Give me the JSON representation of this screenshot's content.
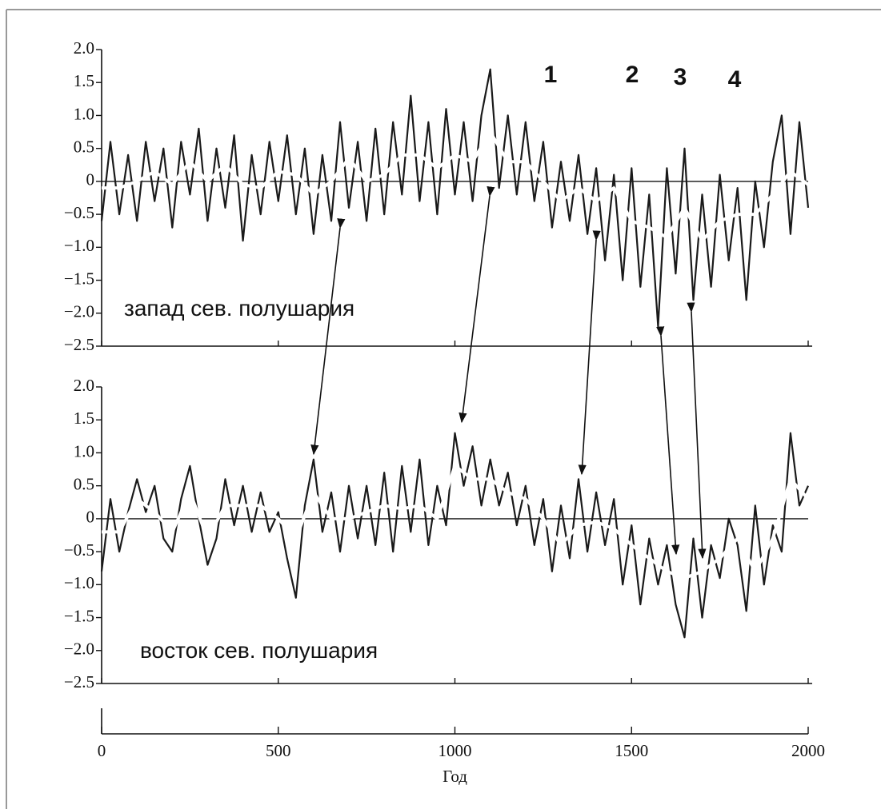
{
  "chart_data": [
    {
      "type": "line",
      "label": "запад сев. полушария",
      "annotations": [
        "1",
        "2",
        "3",
        "4"
      ],
      "xlim": [
        0,
        2000
      ],
      "ylim": [
        -2.5,
        2
      ],
      "yticks": [
        {
          "value": 2,
          "label": "2.0"
        },
        {
          "value": 1.5,
          "label": "1.5"
        },
        {
          "value": 1,
          "label": "1.0"
        },
        {
          "value": 0.5,
          "label": "0.5"
        },
        0,
        {
          "value": -0.5,
          "label": "−0.5"
        },
        {
          "value": -1,
          "label": "−1.0"
        },
        {
          "value": -1.5,
          "label": "−1.5"
        },
        {
          "value": -2,
          "label": "−2.0"
        },
        {
          "value": -2.5,
          "label": "−2.5"
        }
      ],
      "series": [
        {
          "color": "#1a1a1a",
          "x": [
            0,
            25,
            50,
            75,
            100,
            125,
            150,
            175,
            200,
            225,
            250,
            275,
            300,
            325,
            350,
            375,
            400,
            425,
            450,
            475,
            500,
            525,
            550,
            575,
            600,
            625,
            650,
            675,
            700,
            725,
            750,
            775,
            800,
            825,
            850,
            875,
            900,
            925,
            950,
            975,
            1000,
            1025,
            1050,
            1075,
            1100,
            1125,
            1150,
            1175,
            1200,
            1225,
            1250,
            1275,
            1300,
            1325,
            1350,
            1375,
            1400,
            1425,
            1450,
            1475,
            1500,
            1525,
            1550,
            1575,
            1600,
            1625,
            1650,
            1675,
            1700,
            1725,
            1750,
            1775,
            1800,
            1825,
            1850,
            1875,
            1900,
            1925,
            1950,
            1975,
            2000
          ],
          "values": [
            -0.6,
            0.6,
            -0.5,
            0.4,
            -0.6,
            0.6,
            -0.3,
            0.5,
            -0.7,
            0.6,
            -0.2,
            0.8,
            -0.6,
            0.5,
            -0.4,
            0.7,
            -0.9,
            0.4,
            -0.5,
            0.6,
            -0.3,
            0.7,
            -0.5,
            0.5,
            -0.8,
            0.4,
            -0.6,
            0.9,
            -0.4,
            0.6,
            -0.6,
            0.8,
            -0.5,
            0.9,
            -0.2,
            1.3,
            -0.3,
            0.9,
            -0.5,
            1.1,
            -0.2,
            0.9,
            -0.3,
            1.0,
            1.7,
            -0.1,
            1.0,
            -0.2,
            0.9,
            -0.3,
            0.6,
            -0.7,
            0.3,
            -0.6,
            0.4,
            -0.8,
            0.2,
            -1.2,
            0.1,
            -1.5,
            0.2,
            -1.6,
            -0.2,
            -2.2,
            0.2,
            -1.4,
            0.5,
            -1.8,
            -0.2,
            -1.6,
            0.1,
            -1.2,
            -0.1,
            -1.8,
            0.0,
            -1.0,
            0.3,
            1.0,
            -0.8,
            0.9,
            -0.4
          ]
        },
        {
          "color": "#ffffff",
          "x": [
            0,
            50,
            100,
            150,
            200,
            250,
            300,
            350,
            400,
            450,
            500,
            550,
            600,
            650,
            700,
            750,
            800,
            850,
            900,
            950,
            1000,
            1050,
            1100,
            1150,
            1200,
            1250,
            1300,
            1350,
            1400,
            1450,
            1500,
            1550,
            1600,
            1650,
            1700,
            1750,
            1800,
            1850,
            1900,
            1950,
            2000
          ],
          "values": [
            -0.1,
            -0.1,
            0.0,
            0.15,
            -0.05,
            0.3,
            0.0,
            0.25,
            -0.05,
            -0.1,
            0.15,
            0.1,
            -0.2,
            0.0,
            0.35,
            0.0,
            0.1,
            0.4,
            0.4,
            0.2,
            0.4,
            0.3,
            0.75,
            0.3,
            0.3,
            0.0,
            -0.3,
            -0.1,
            -0.3,
            -0.1,
            -0.6,
            -0.7,
            -0.85,
            -0.4,
            -0.9,
            -0.6,
            -0.5,
            -0.5,
            -0.2,
            0.15,
            -0.05
          ]
        }
      ]
    },
    {
      "type": "line",
      "label": "восток сев. полушария",
      "xlabel": "Год",
      "xlim": [
        0,
        2000
      ],
      "xticks": [
        0,
        500,
        1000,
        1500,
        2000
      ],
      "ylim": [
        -2.5,
        2
      ],
      "yticks": [
        {
          "value": 2,
          "label": "2.0"
        },
        {
          "value": 1.5,
          "label": "1.5"
        },
        {
          "value": 1,
          "label": "1.0"
        },
        {
          "value": 0.5,
          "label": "0.5"
        },
        0,
        {
          "value": -0.5,
          "label": "−0.5"
        },
        {
          "value": -1,
          "label": "−1.0"
        },
        {
          "value": -1.5,
          "label": "−1.5"
        },
        {
          "value": -2,
          "label": "−2.0"
        },
        {
          "value": -2.5,
          "label": "−2.5"
        }
      ],
      "series": [
        {
          "color": "#1a1a1a",
          "x": [
            0,
            25,
            50,
            75,
            100,
            125,
            150,
            175,
            200,
            225,
            250,
            275,
            300,
            325,
            350,
            375,
            400,
            425,
            450,
            475,
            500,
            525,
            550,
            575,
            600,
            625,
            650,
            675,
            700,
            725,
            750,
            775,
            800,
            825,
            850,
            875,
            900,
            925,
            950,
            975,
            1000,
            1025,
            1050,
            1075,
            1100,
            1125,
            1150,
            1175,
            1200,
            1225,
            1250,
            1275,
            1300,
            1325,
            1350,
            1375,
            1400,
            1425,
            1450,
            1475,
            1500,
            1525,
            1550,
            1575,
            1600,
            1625,
            1650,
            1675,
            1700,
            1725,
            1750,
            1775,
            1800,
            1825,
            1850,
            1875,
            1900,
            1925,
            1950,
            1975,
            2000
          ],
          "values": [
            -0.8,
            0.3,
            -0.5,
            0.1,
            0.6,
            0.1,
            0.5,
            -0.3,
            -0.5,
            0.3,
            0.8,
            0.0,
            -0.7,
            -0.3,
            0.6,
            -0.1,
            0.5,
            -0.2,
            0.4,
            -0.2,
            0.1,
            -0.6,
            -1.2,
            0.2,
            0.9,
            -0.2,
            0.4,
            -0.5,
            0.5,
            -0.3,
            0.5,
            -0.4,
            0.7,
            -0.5,
            0.8,
            -0.2,
            0.9,
            -0.4,
            0.5,
            -0.1,
            1.3,
            0.5,
            1.1,
            0.2,
            0.9,
            0.2,
            0.7,
            -0.1,
            0.5,
            -0.4,
            0.3,
            -0.8,
            0.2,
            -0.6,
            0.6,
            -0.5,
            0.4,
            -0.4,
            0.3,
            -1.0,
            -0.1,
            -1.3,
            -0.3,
            -1.0,
            -0.4,
            -1.3,
            -1.8,
            -0.3,
            -1.5,
            -0.4,
            -0.9,
            0.0,
            -0.4,
            -1.4,
            0.2,
            -1.0,
            -0.1,
            -0.5,
            1.3,
            0.2,
            0.5
          ]
        },
        {
          "color": "#ffffff",
          "x": [
            0,
            50,
            100,
            150,
            200,
            250,
            300,
            350,
            400,
            450,
            500,
            550,
            600,
            650,
            700,
            750,
            800,
            850,
            900,
            950,
            1000,
            1050,
            1100,
            1150,
            1200,
            1250,
            1300,
            1350,
            1400,
            1450,
            1500,
            1550,
            1600,
            1650,
            1700,
            1750,
            1800,
            1850,
            1900,
            1950,
            2000
          ],
          "values": [
            -0.2,
            -0.2,
            0.3,
            0.1,
            -0.2,
            0.4,
            -0.3,
            0.2,
            0.2,
            0.2,
            0.0,
            -0.3,
            0.4,
            0.0,
            0.0,
            0.1,
            0.2,
            0.15,
            0.2,
            0.0,
            0.8,
            0.6,
            0.6,
            0.4,
            0.3,
            0.0,
            -0.4,
            -0.1,
            -0.05,
            -0.15,
            -0.4,
            -0.6,
            -0.8,
            -0.9,
            -0.8,
            -0.6,
            -0.3,
            -0.8,
            -0.3,
            0.6,
            0.3
          ]
        }
      ]
    }
  ]
}
